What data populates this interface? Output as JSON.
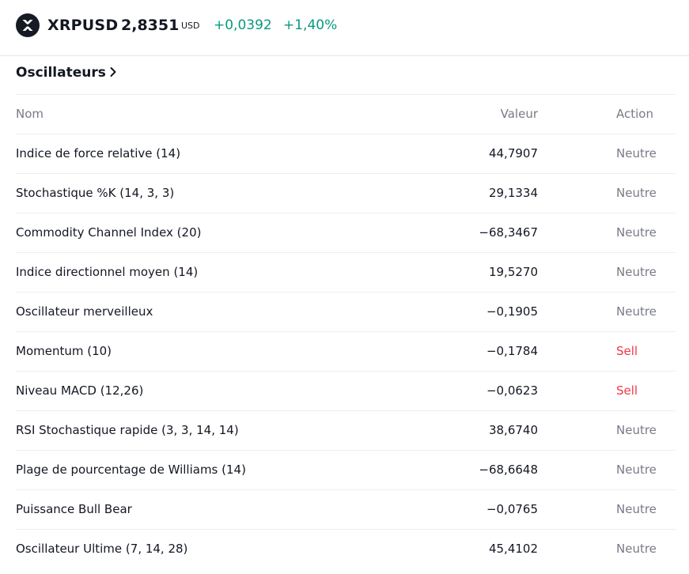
{
  "header": {
    "symbol": "XRPUSD",
    "price": "2,8351",
    "currency": "USD",
    "change": "+0,0392",
    "change_percent": "+1,40%",
    "logo_icon": "xrp-logo-icon",
    "positive_color": "#089981"
  },
  "section": {
    "title": "Oscillateurs",
    "title_icon": "chevron-right-icon"
  },
  "table": {
    "columns": {
      "name": "Nom",
      "value": "Valeur",
      "action": "Action"
    },
    "rows": [
      {
        "name": "Indice de force relative (14)",
        "value": "44,7907",
        "action": "Neutre",
        "status": "neutral"
      },
      {
        "name": "Stochastique %K (14, 3, 3)",
        "value": "29,1334",
        "action": "Neutre",
        "status": "neutral"
      },
      {
        "name": "Commodity Channel Index (20)",
        "value": "−68,3467",
        "action": "Neutre",
        "status": "neutral"
      },
      {
        "name": "Indice directionnel moyen (14)",
        "value": "19,5270",
        "action": "Neutre",
        "status": "neutral"
      },
      {
        "name": "Oscillateur merveilleux",
        "value": "−0,1905",
        "action": "Neutre",
        "status": "neutral"
      },
      {
        "name": "Momentum (10)",
        "value": "−0,1784",
        "action": "Sell",
        "status": "sell"
      },
      {
        "name": "Niveau MACD (12,26)",
        "value": "−0,0623",
        "action": "Sell",
        "status": "sell"
      },
      {
        "name": "RSI Stochastique rapide (3, 3, 14, 14)",
        "value": "38,6740",
        "action": "Neutre",
        "status": "neutral"
      },
      {
        "name": "Plage de pourcentage de Williams (14)",
        "value": "−68,6648",
        "action": "Neutre",
        "status": "neutral"
      },
      {
        "name": "Puissance Bull Bear",
        "value": "−0,0765",
        "action": "Neutre",
        "status": "neutral"
      },
      {
        "name": "Oscillateur Ultime (7, 14, 28)",
        "value": "45,4102",
        "action": "Neutre",
        "status": "neutral"
      }
    ],
    "colors": {
      "neutral": "#787b86",
      "sell": "#f23645"
    }
  }
}
